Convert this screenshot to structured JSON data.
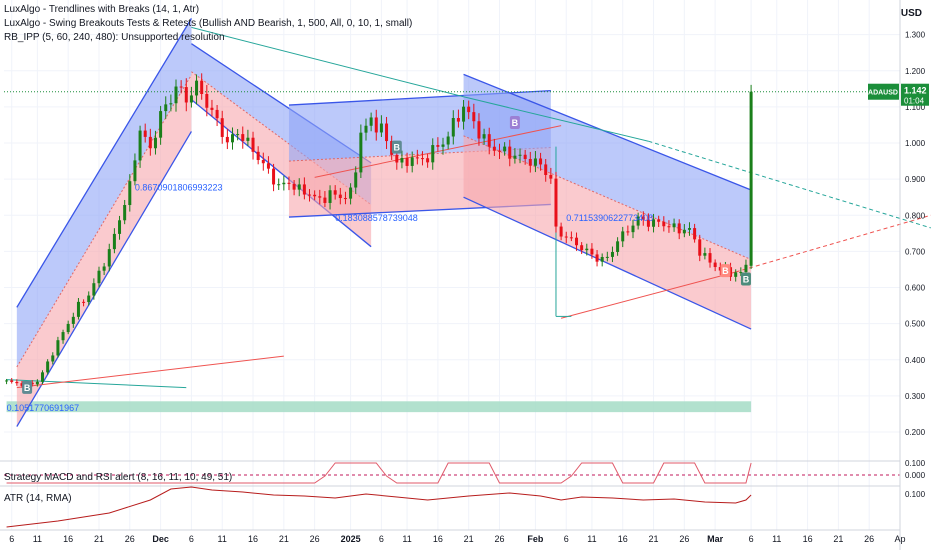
{
  "currency": "USD",
  "indicators": [
    "LuxAlgo - Trendlines with Breaks (14, 1, Atr)",
    "LuxAlgo - Swing Breakouts Tests & Retests (Bullish AND Bearish, 1, 500, All, 0, 10, 1, small)",
    "RB_IPP (5, 60, 240, 480): Unsupported resolution"
  ],
  "price_tag": {
    "symbol": "ADAUSD",
    "price": "1.142",
    "countdown": "01:04"
  },
  "annotations": [
    {
      "text": "0.8670901806993223",
      "x": 25,
      "y": 0.868
    },
    {
      "text": "0.183088578739048",
      "x": 64,
      "y": 0.784
    },
    {
      "text": "0.7115390622773408",
      "x": 109,
      "y": 0.784
    },
    {
      "text": "0.1051770691967",
      "x": 0,
      "y": 0.258
    }
  ],
  "markers": [
    {
      "label": "B",
      "x": 4,
      "y": 0.325,
      "color": "#5f8b93"
    },
    {
      "label": "B",
      "x": 76,
      "y": 0.99,
      "color": "#5f8b93"
    },
    {
      "label": "B",
      "x": 99,
      "y": 1.058,
      "color": "#9b7fd4"
    },
    {
      "label": "B",
      "x": 140,
      "y": 0.648,
      "color": "#ff8a80"
    },
    {
      "label": "B",
      "x": 144,
      "y": 0.625,
      "color": "#4c8c7c"
    }
  ],
  "oscillators": [
    {
      "name": "Strategy MACD and RSI alert (8, 16, 11, 10, 49, 51)",
      "ticks": [
        "0.000",
        "0.100"
      ]
    },
    {
      "name": "ATR (14, RMA)",
      "ticks": [
        "0.100"
      ]
    }
  ],
  "chart_data": {
    "type": "candlestick",
    "symbol": "ADAUSD",
    "y_ticks": [
      "1.300",
      "1.200",
      "1.100",
      "1.000",
      "0.900",
      "0.800",
      "0.700",
      "0.600",
      "0.500",
      "0.400",
      "0.300",
      "0.200"
    ],
    "y_range": [
      0.2,
      1.335
    ],
    "x_labels": [
      {
        "t": 1,
        "label": "6"
      },
      {
        "t": 6,
        "label": "11"
      },
      {
        "t": 12,
        "label": "16"
      },
      {
        "t": 18,
        "label": "21"
      },
      {
        "t": 24,
        "label": "26"
      },
      {
        "t": 30,
        "label": "Dec"
      },
      {
        "t": 36,
        "label": "6"
      },
      {
        "t": 42,
        "label": "11"
      },
      {
        "t": 48,
        "label": "16"
      },
      {
        "t": 54,
        "label": "21"
      },
      {
        "t": 60,
        "label": "26"
      },
      {
        "t": 67,
        "label": "2025"
      },
      {
        "t": 73,
        "label": "6"
      },
      {
        "t": 78,
        "label": "11"
      },
      {
        "t": 84,
        "label": "16"
      },
      {
        "t": 90,
        "label": "21"
      },
      {
        "t": 96,
        "label": "26"
      },
      {
        "t": 103,
        "label": "Feb"
      },
      {
        "t": 109,
        "label": "6"
      },
      {
        "t": 114,
        "label": "11"
      },
      {
        "t": 120,
        "label": "16"
      },
      {
        "t": 126,
        "label": "21"
      },
      {
        "t": 132,
        "label": "26"
      },
      {
        "t": 138,
        "label": "Mar"
      },
      {
        "t": 145,
        "label": "6"
      },
      {
        "t": 150,
        "label": "11"
      },
      {
        "t": 156,
        "label": "16"
      },
      {
        "t": 162,
        "label": "21"
      },
      {
        "t": 168,
        "label": "26"
      },
      {
        "t": 174,
        "label": "Ap"
      }
    ],
    "close_anchors": [
      [
        0,
        0.34
      ],
      [
        2,
        0.335
      ],
      [
        4,
        0.33
      ],
      [
        6,
        0.34
      ],
      [
        8,
        0.39
      ],
      [
        10,
        0.45
      ],
      [
        12,
        0.5
      ],
      [
        14,
        0.55
      ],
      [
        16,
        0.58
      ],
      [
        18,
        0.64
      ],
      [
        20,
        0.7
      ],
      [
        22,
        0.79
      ],
      [
        24,
        0.88
      ],
      [
        26,
        1.04
      ],
      [
        28,
        0.98
      ],
      [
        30,
        1.08
      ],
      [
        32,
        1.12
      ],
      [
        33,
        1.16
      ],
      [
        35,
        1.12
      ],
      [
        37,
        1.16
      ],
      [
        39,
        1.11
      ],
      [
        41,
        1.06
      ],
      [
        43,
        1.0
      ],
      [
        45,
        1.03
      ],
      [
        47,
        1.0
      ],
      [
        49,
        0.96
      ],
      [
        51,
        0.92
      ],
      [
        53,
        0.88
      ],
      [
        55,
        0.89
      ],
      [
        57,
        0.87
      ],
      [
        59,
        0.86
      ],
      [
        61,
        0.84
      ],
      [
        63,
        0.86
      ],
      [
        65,
        0.85
      ],
      [
        67,
        0.86
      ],
      [
        68,
        0.93
      ],
      [
        69,
        1.03
      ],
      [
        71,
        1.06
      ],
      [
        73,
        1.04
      ],
      [
        75,
        0.97
      ],
      [
        77,
        0.94
      ],
      [
        79,
        0.96
      ],
      [
        81,
        0.95
      ],
      [
        83,
        0.98
      ],
      [
        85,
        1.0
      ],
      [
        87,
        1.05
      ],
      [
        89,
        1.1
      ],
      [
        90,
        1.08
      ],
      [
        92,
        1.03
      ],
      [
        94,
        0.99
      ],
      [
        96,
        0.98
      ],
      [
        98,
        0.97
      ],
      [
        100,
        0.96
      ],
      [
        102,
        0.95
      ],
      [
        104,
        0.94
      ],
      [
        106,
        0.9
      ],
      [
        107,
        0.76
      ],
      [
        109,
        0.74
      ],
      [
        111,
        0.72
      ],
      [
        113,
        0.7
      ],
      [
        115,
        0.68
      ],
      [
        117,
        0.68
      ],
      [
        119,
        0.73
      ],
      [
        121,
        0.76
      ],
      [
        123,
        0.79
      ],
      [
        125,
        0.78
      ],
      [
        127,
        0.78
      ],
      [
        129,
        0.77
      ],
      [
        131,
        0.76
      ],
      [
        133,
        0.76
      ],
      [
        135,
        0.7
      ],
      [
        137,
        0.67
      ],
      [
        139,
        0.65
      ],
      [
        141,
        0.64
      ],
      [
        143,
        0.64
      ],
      [
        144,
        0.66
      ],
      [
        145,
        1.142
      ]
    ],
    "last_price": 1.142,
    "trend_channels": [
      {
        "x1": 2,
        "y1a": 0.545,
        "y1b": 0.215,
        "x2": 36,
        "y2a": 1.345,
        "y2b": 1.032
      },
      {
        "x1": 36,
        "y1a": 1.275,
        "y1b": 1.12,
        "x2": 71,
        "y2a": 0.945,
        "y2b": 0.713
      },
      {
        "x1": 55,
        "y1a": 1.105,
        "y1b": 0.795,
        "x2": 106,
        "y2a": 1.145,
        "y2b": 0.83
      },
      {
        "x1": 89,
        "y1a": 1.19,
        "y1b": 0.85,
        "x2": 145,
        "y2a": 0.87,
        "y2b": 0.485
      }
    ],
    "lines": [
      {
        "x1": 0,
        "y1": 0.345,
        "x2": 35,
        "y2": 0.323,
        "color": "#26a69a",
        "dash": false
      },
      {
        "x1": 2,
        "y1": 0.323,
        "x2": 54,
        "y2": 0.41,
        "color": "#ef5350",
        "dash": false
      },
      {
        "x1": 36,
        "y1": 1.32,
        "x2": 89,
        "y2": 1.128,
        "color": "#26a69a",
        "dash": false
      },
      {
        "x1": 89,
        "y1": 1.128,
        "x2": 125,
        "y2": 1.005,
        "color": "#26a69a",
        "dash": false
      },
      {
        "x1": 125,
        "y1": 1.005,
        "x2": 180,
        "y2": 0.765,
        "color": "#26a69a",
        "dash": true
      },
      {
        "x1": 108,
        "y1": 0.515,
        "x2": 142,
        "y2": 0.643,
        "color": "#ef5350",
        "dash": false
      },
      {
        "x1": 142,
        "y1": 0.643,
        "x2": 180,
        "y2": 0.8,
        "color": "#ef5350",
        "dash": true
      },
      {
        "x1": 60,
        "y1": 0.905,
        "x2": 108,
        "y2": 1.048,
        "color": "#ef5350",
        "dash": false
      },
      {
        "x1": 107,
        "y1": 0.99,
        "x2": 107,
        "y2": 0.52,
        "color": "#26a69a",
        "dash": false
      },
      {
        "x1": 107,
        "y1": 0.52,
        "x2": 110,
        "y2": 0.52,
        "color": "#26a69a",
        "dash": false
      }
    ],
    "support_zone": [
      0.255,
      0.285
    ],
    "hline": 1.142
  }
}
